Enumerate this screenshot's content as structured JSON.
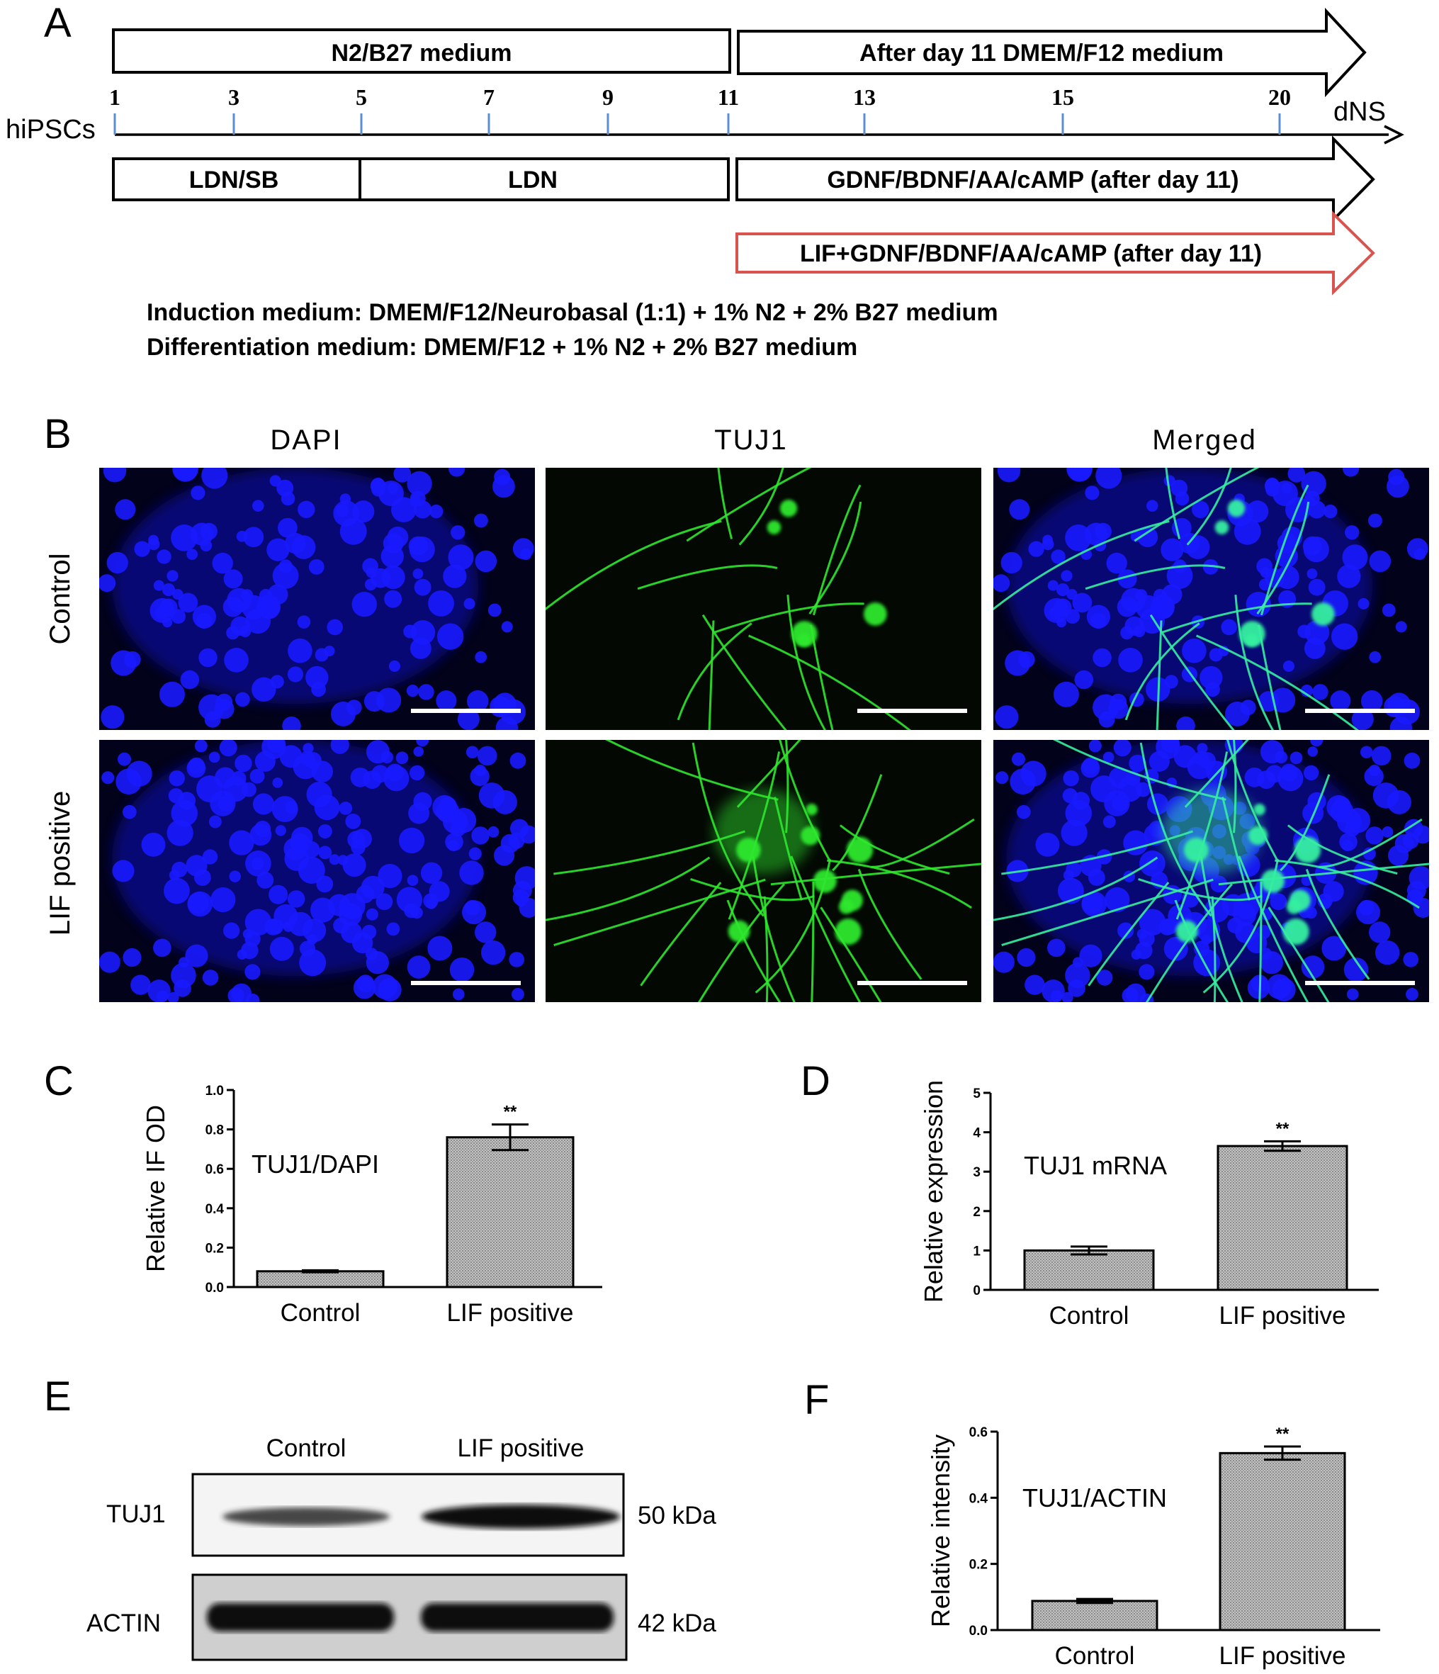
{
  "panel_a": {
    "letter": "A",
    "top_medium_1": "N2/B27 medium",
    "top_medium_2": "After day 11 DMEM/F12 medium",
    "start_label": "hiPSCs",
    "end_label": "dNS",
    "ticks": [
      "1",
      "3",
      "5",
      "7",
      "9",
      "11",
      "13",
      "15",
      "20"
    ],
    "treat_1": "LDN/SB",
    "treat_2": "LDN",
    "treat_3": "GDNF/BDNF/AA/cAMP (after day 11)",
    "treat_4": "LIF+GDNF/BDNF/AA/cAMP (after day 11)",
    "induction_medium": "Induction medium: DMEM/F12/Neurobasal (1:1) + 1% N2 + 2% B27 medium",
    "differentiation_medium": "Differentiation medium: DMEM/F12 + 1% N2 + 2% B27 medium"
  },
  "panel_b": {
    "letter": "B",
    "col_dapi": "DAPI",
    "col_tuj1": "TUJ1",
    "col_merged": "Merged",
    "row_control": "Control",
    "row_lif": "LIF positive"
  },
  "panel_e": {
    "letter": "E",
    "lane_1": "Control",
    "lane_2": "LIF positive",
    "row_1": "TUJ1",
    "row_2": "ACTIN",
    "size_1": "50 kDa",
    "size_2": "42 kDa"
  },
  "colors": {
    "dapi_blue": "#1414ff",
    "tuj1_green": "#2ee82e",
    "lif_arrow_red": "#d9534f",
    "bar_fill": "#b8b8b8"
  },
  "chart_data": [
    {
      "panel": "C",
      "type": "bar",
      "title": "",
      "xlabel": "",
      "ylabel": "Relative IF OD",
      "inner_label": "TUJ1/DAPI",
      "categories": [
        "Control",
        "LIF positive"
      ],
      "values": [
        0.08,
        0.76
      ],
      "errors": [
        0.005,
        0.065
      ],
      "significance": [
        "",
        "**"
      ],
      "ylim": [
        0,
        1.0
      ],
      "yticks": [
        "0.0",
        "0.2",
        "0.4",
        "0.6",
        "0.8",
        "1.0"
      ],
      "grid": false,
      "legend": "none"
    },
    {
      "panel": "D",
      "type": "bar",
      "title": "",
      "xlabel": "",
      "ylabel": "Relative expression",
      "inner_label": "TUJ1 mRNA",
      "categories": [
        "Control",
        "LIF positive"
      ],
      "values": [
        1.0,
        3.65
      ],
      "errors": [
        0.1,
        0.12
      ],
      "significance": [
        "",
        "**"
      ],
      "ylim": [
        0,
        5
      ],
      "yticks": [
        "0",
        "1",
        "2",
        "3",
        "4",
        "5"
      ],
      "grid": false,
      "legend": "none"
    },
    {
      "panel": "F",
      "type": "bar",
      "title": "",
      "xlabel": "",
      "ylabel": "Relative intensity",
      "inner_label": "TUJ1/ACTIN",
      "categories": [
        "Control",
        "LIF positive"
      ],
      "values": [
        0.088,
        0.535
      ],
      "errors": [
        0.006,
        0.02
      ],
      "significance": [
        "",
        "**"
      ],
      "ylim": [
        0,
        0.6
      ],
      "yticks": [
        "0.0",
        "0.2",
        "0.4",
        "0.6"
      ],
      "grid": false,
      "legend": "none"
    }
  ]
}
